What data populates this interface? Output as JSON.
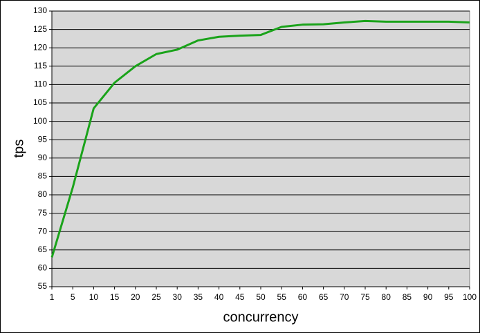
{
  "chart_data": {
    "type": "line",
    "x_label": "concurrency",
    "y_label": "tps",
    "categories": [
      "1",
      "5",
      "10",
      "15",
      "20",
      "25",
      "30",
      "35",
      "40",
      "45",
      "50",
      "55",
      "60",
      "65",
      "70",
      "75",
      "80",
      "85",
      "90",
      "95",
      "100"
    ],
    "series": [
      {
        "name": "tps",
        "color": "#1aa31a",
        "values": [
          63,
          82,
          103.5,
          110.5,
          115,
          118.3,
          119.5,
          122,
          123,
          123.3,
          123.5,
          125.7,
          126.3,
          126.4,
          126.9,
          127.3,
          127.1,
          127.1,
          127.1,
          127.1,
          126.9
        ]
      }
    ],
    "ylim": [
      55,
      130
    ],
    "yticks": [
      55,
      60,
      65,
      70,
      75,
      80,
      85,
      90,
      95,
      100,
      105,
      110,
      115,
      120,
      125,
      130
    ],
    "grid": true,
    "plot_background": "#d8d8d8"
  }
}
